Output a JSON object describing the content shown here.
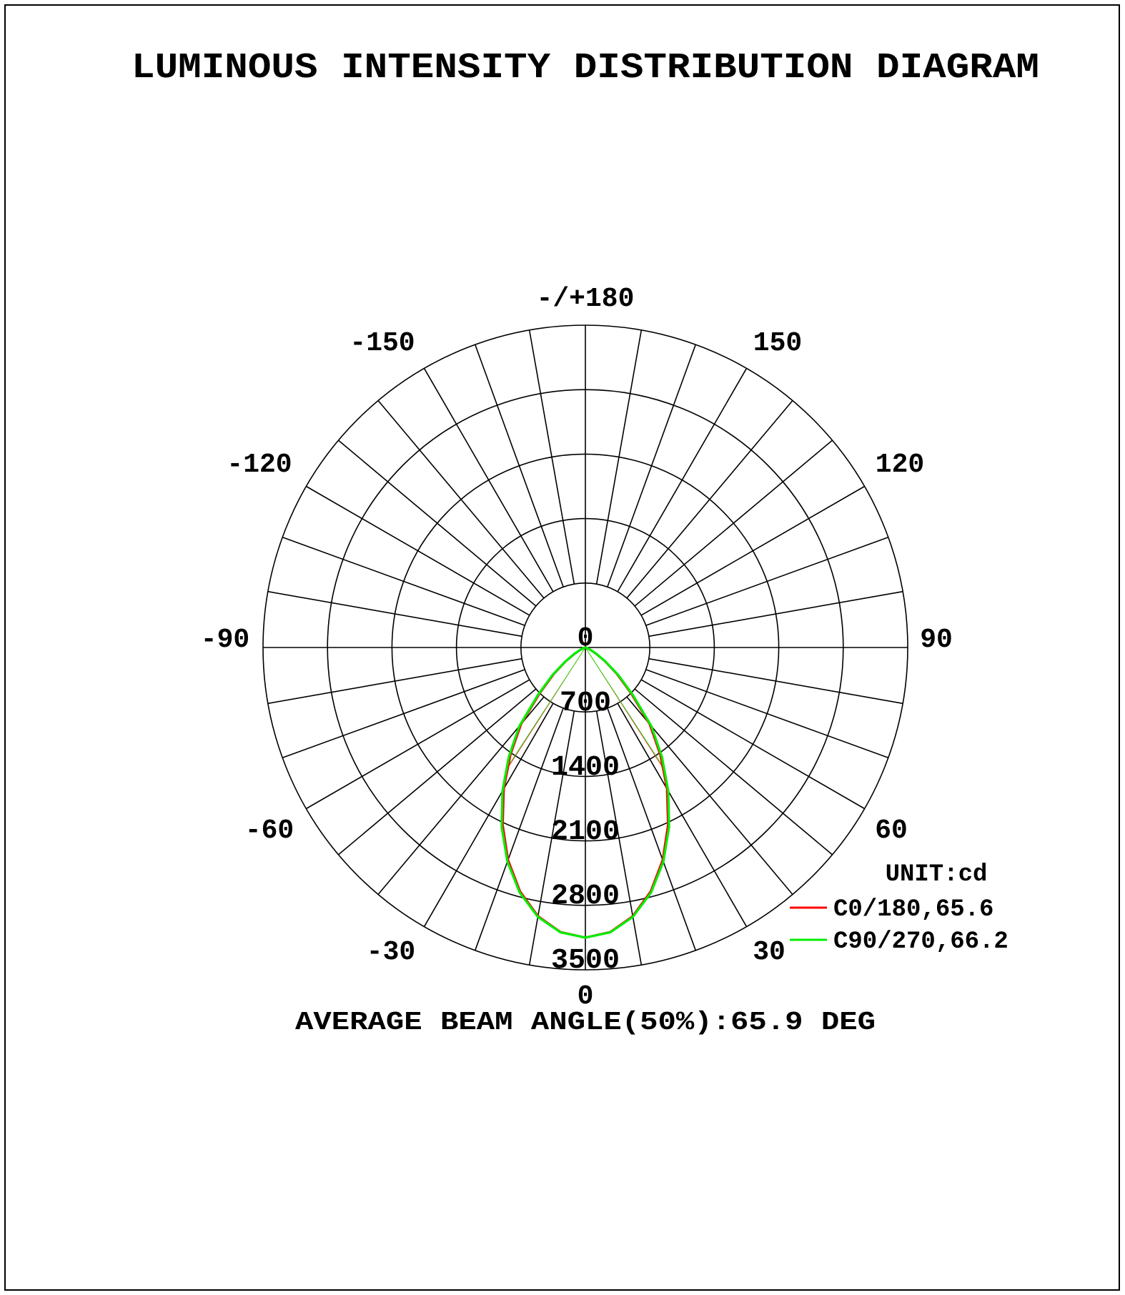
{
  "chart_data": {
    "type": "polar",
    "title": "LUMINOUS INTENSITY DISTRIBUTION DIAGRAM",
    "unit_label": "UNIT:cd",
    "radial_ticks": [
      700,
      1400,
      2100,
      2800,
      3500
    ],
    "radial_max": 3500,
    "center_label": "0",
    "angle_labels": {
      "top": "-/+180",
      "p150": "150",
      "m150": "-150",
      "p120": "120",
      "m120": "-120",
      "p90": "90",
      "m90": "-90",
      "p60": "60",
      "m60": "-60",
      "p30": "30",
      "m30": "-30",
      "bottom": "0"
    },
    "grid": true,
    "angle_step": 10,
    "gamma": [
      0,
      5,
      10,
      15,
      20,
      25,
      30,
      35,
      40,
      45,
      50,
      55,
      60,
      65,
      70,
      75,
      80,
      85,
      90
    ],
    "series": [
      {
        "name": "C0/180,65.6",
        "color": "#ff0000",
        "beam_angle": 65.6,
        "values": [
          3150,
          3102,
          2963,
          2742,
          2456,
          2125,
          1772,
          1418,
          1085,
          700,
          450,
          260,
          130,
          60,
          25,
          10,
          5,
          0,
          0
        ]
      },
      {
        "name": "C90/270,66.2",
        "color": "#00ee00",
        "beam_angle": 66.2,
        "values": [
          3150,
          3105,
          2970,
          2755,
          2475,
          2150,
          1800,
          1450,
          1115,
          730,
          470,
          270,
          140,
          65,
          25,
          10,
          5,
          0,
          0
        ]
      }
    ],
    "footer": "AVERAGE BEAM ANGLE(50%):65.9 DEG",
    "legend_position": "bottom-right"
  }
}
